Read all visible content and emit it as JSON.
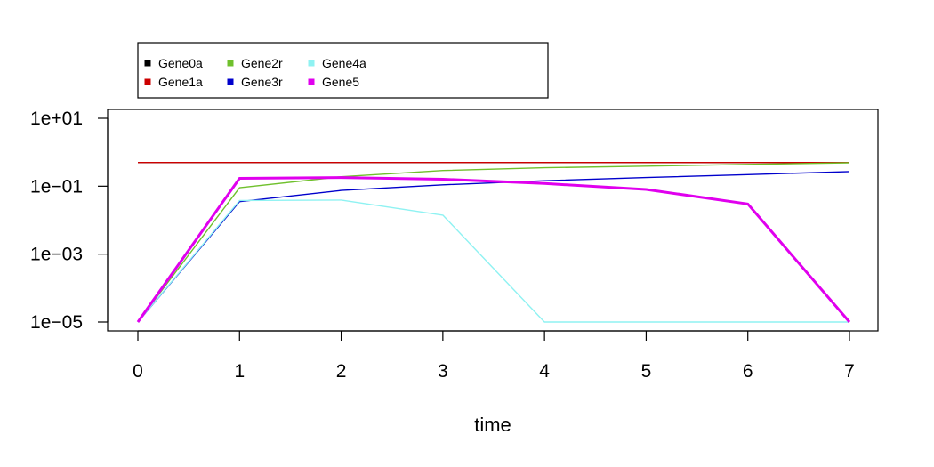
{
  "chart_data": {
    "type": "line",
    "title": "",
    "xlabel": "time",
    "ylabel": "",
    "x": [
      0,
      1,
      2,
      3,
      4,
      5,
      6,
      7
    ],
    "xlim": [
      0,
      7
    ],
    "ylim": [
      1e-05,
      10
    ],
    "y_scale": "log",
    "x_tick_labels": [
      "0",
      "1",
      "2",
      "3",
      "4",
      "5",
      "6",
      "7"
    ],
    "y_ticks": [
      1e-05,
      0.001,
      0.1,
      10
    ],
    "y_tick_labels": [
      "1e−05",
      "1e−03",
      "1e−01",
      "1e+01"
    ],
    "grid": false,
    "legend_position": "top-left, above plot",
    "series": [
      {
        "name": "Gene0a",
        "color": "#000000",
        "values": [
          0.5,
          0.5,
          0.5,
          0.5,
          0.5,
          0.5,
          0.5,
          0.5
        ]
      },
      {
        "name": "Gene1a",
        "color": "#cc0000",
        "values": [
          0.5,
          0.5,
          0.5,
          0.5,
          0.5,
          0.5,
          0.5,
          0.5
        ]
      },
      {
        "name": "Gene2r",
        "color": "#6fc02c",
        "values": [
          1e-05,
          0.09,
          0.19,
          0.29,
          0.35,
          0.39,
          0.44,
          0.49
        ]
      },
      {
        "name": "Gene3r",
        "color": "#0000cc",
        "values": [
          1e-05,
          0.035,
          0.075,
          0.11,
          0.145,
          0.18,
          0.22,
          0.27
        ]
      },
      {
        "name": "Gene4a",
        "color": "#8ff2f2",
        "values": [
          1e-05,
          0.038,
          0.039,
          0.014,
          1e-05,
          1e-05,
          1e-05,
          1e-05
        ]
      },
      {
        "name": "Gene5",
        "color": "#e000ee",
        "values": [
          1e-05,
          0.17,
          0.18,
          0.16,
          0.12,
          0.08,
          0.03,
          1e-05
        ]
      }
    ]
  }
}
